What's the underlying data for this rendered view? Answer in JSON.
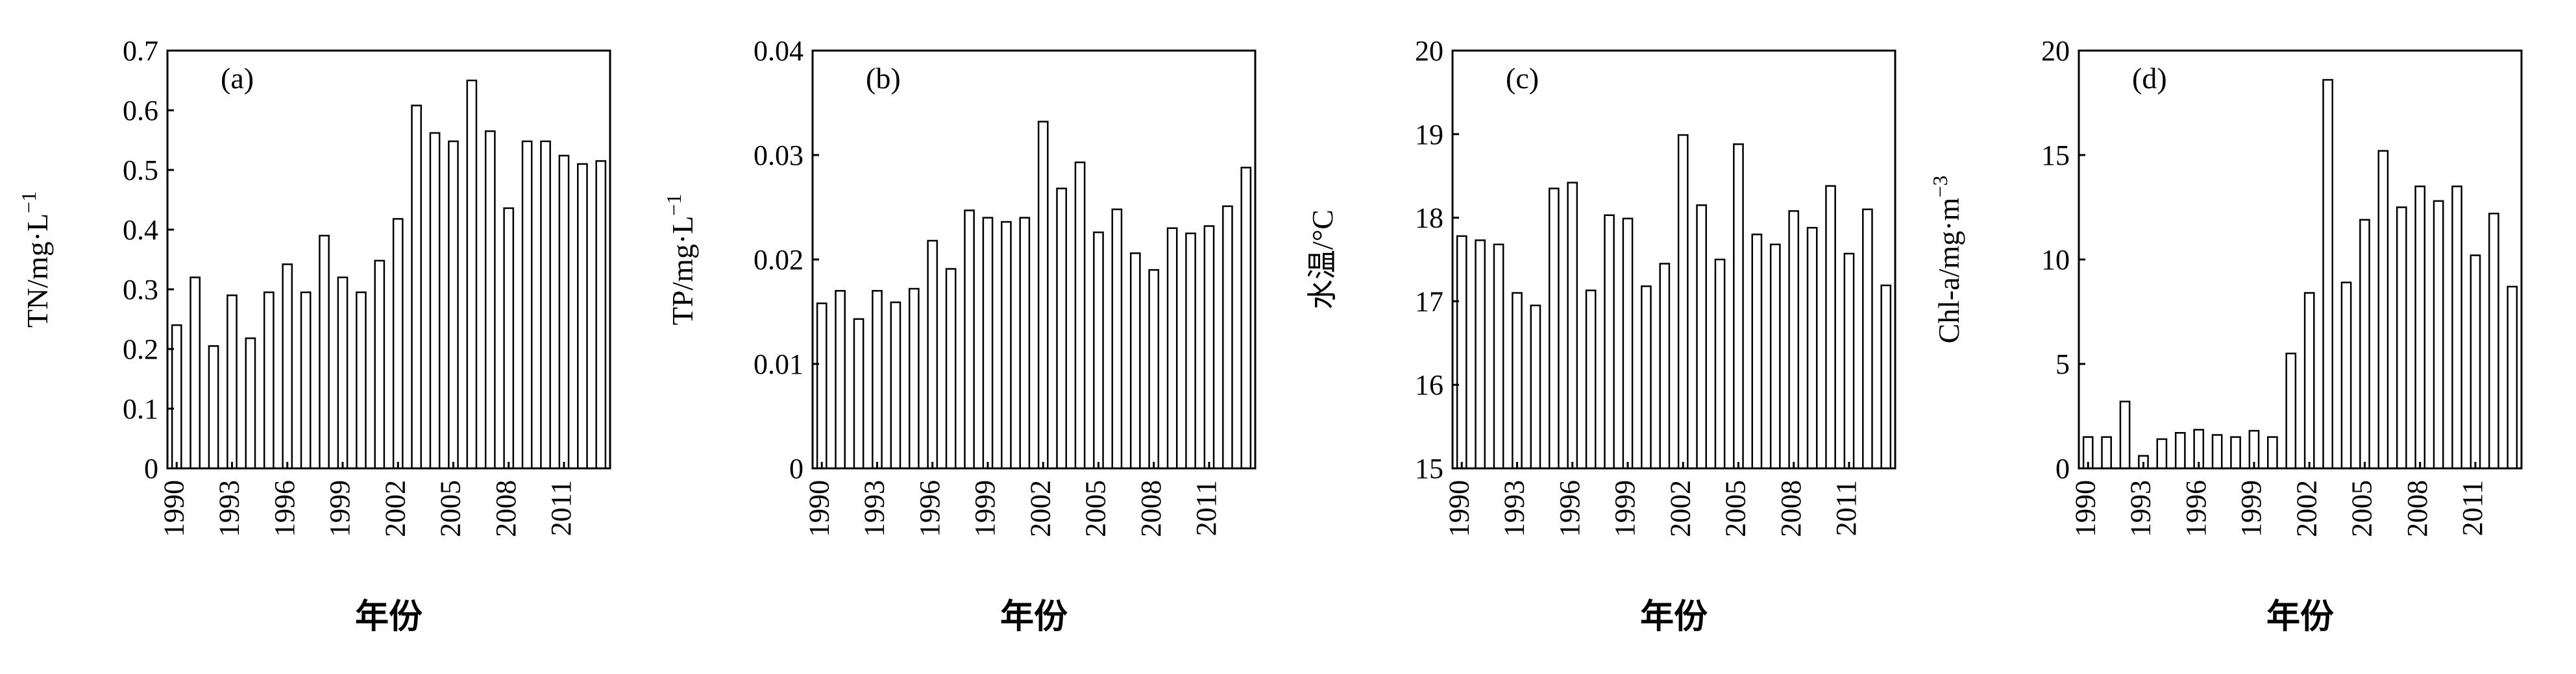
{
  "chart_data": [
    {
      "type": "bar",
      "panel_label": "(a)",
      "ylabel": "TN/mg·L",
      "ylabel_sup": "−1",
      "xlabel": "年份",
      "ylim": [
        0,
        0.7
      ],
      "yticks": [
        "0",
        "0.1",
        "0.2",
        "0.3",
        "0.4",
        "0.5",
        "0.6",
        "0.7"
      ],
      "xticks": [
        "1990",
        "1993",
        "1996",
        "1999",
        "2002",
        "2005",
        "2008",
        "2011"
      ],
      "categories": [
        "1990",
        "1991",
        "1992",
        "1993",
        "1994",
        "1995",
        "1996",
        "1997",
        "1998",
        "1999",
        "2000",
        "2001",
        "2002",
        "2003",
        "2004",
        "2005",
        "2006",
        "2007",
        "2008",
        "2009",
        "2010",
        "2011",
        "2012",
        "2013"
      ],
      "values": [
        0.24,
        0.32,
        0.205,
        0.29,
        0.218,
        0.295,
        0.342,
        0.295,
        0.39,
        0.32,
        0.295,
        0.348,
        0.418,
        0.608,
        0.562,
        0.548,
        0.65,
        0.565,
        0.436,
        0.548,
        0.548,
        0.524,
        0.51,
        0.515
      ]
    },
    {
      "type": "bar",
      "panel_label": "(b)",
      "ylabel": "TP/mg·L",
      "ylabel_sup": "−1",
      "xlabel": "年份",
      "ylim": [
        0,
        0.04
      ],
      "yticks": [
        "0",
        "0.01",
        "0.02",
        "0.03",
        "0.04"
      ],
      "xticks": [
        "1990",
        "1993",
        "1996",
        "1999",
        "2002",
        "2005",
        "2008",
        "2011"
      ],
      "categories": [
        "1990",
        "1991",
        "1992",
        "1993",
        "1994",
        "1995",
        "1996",
        "1997",
        "1998",
        "1999",
        "2000",
        "2001",
        "2002",
        "2003",
        "2004",
        "2005",
        "2006",
        "2007",
        "2008",
        "2009",
        "2010",
        "2011",
        "2012",
        "2013"
      ],
      "values": [
        0.0158,
        0.017,
        0.0143,
        0.017,
        0.0159,
        0.0172,
        0.0218,
        0.0191,
        0.0247,
        0.024,
        0.0236,
        0.024,
        0.0332,
        0.0268,
        0.0293,
        0.0226,
        0.0248,
        0.0206,
        0.019,
        0.023,
        0.0225,
        0.0232,
        0.0251,
        0.0288
      ]
    },
    {
      "type": "bar",
      "panel_label": "(c)",
      "ylabel": "水温/°C",
      "ylabel_sup": "",
      "xlabel": "年份",
      "ylim": [
        15,
        20
      ],
      "yticks": [
        "15",
        "16",
        "17",
        "18",
        "19",
        "20"
      ],
      "xticks": [
        "1990",
        "1993",
        "1996",
        "1999",
        "2002",
        "2005",
        "2008",
        "2011"
      ],
      "categories": [
        "1990",
        "1991",
        "1992",
        "1993",
        "1994",
        "1995",
        "1996",
        "1997",
        "1998",
        "1999",
        "2000",
        "2001",
        "2002",
        "2003",
        "2004",
        "2005",
        "2006",
        "2007",
        "2008",
        "2009",
        "2010",
        "2011",
        "2012",
        "2013"
      ],
      "values": [
        17.78,
        17.73,
        17.68,
        17.1,
        16.95,
        18.35,
        18.42,
        17.13,
        18.03,
        17.99,
        17.18,
        17.45,
        18.99,
        18.15,
        17.5,
        18.88,
        17.8,
        17.68,
        18.08,
        17.88,
        18.38,
        17.57,
        18.1,
        17.19
      ]
    },
    {
      "type": "bar",
      "panel_label": "(d)",
      "ylabel": "Chl-a/mg·m",
      "ylabel_sup": "−3",
      "xlabel": "年份",
      "ylim": [
        0,
        20
      ],
      "yticks": [
        "0",
        "5",
        "10",
        "15",
        "20"
      ],
      "xticks": [
        "1990",
        "1993",
        "1996",
        "1999",
        "2002",
        "2005",
        "2008",
        "2011"
      ],
      "categories": [
        "1990",
        "1991",
        "1992",
        "1993",
        "1994",
        "1995",
        "1996",
        "1997",
        "1998",
        "1999",
        "2000",
        "2001",
        "2002",
        "2003",
        "2004",
        "2005",
        "2006",
        "2007",
        "2008",
        "2009",
        "2010",
        "2011",
        "2012",
        "2013"
      ],
      "values": [
        1.5,
        1.5,
        3.2,
        0.6,
        1.4,
        1.7,
        1.85,
        1.6,
        1.5,
        1.8,
        1.5,
        5.5,
        8.4,
        18.6,
        8.9,
        11.9,
        15.2,
        12.5,
        13.5,
        12.8,
        13.5,
        10.2,
        12.2,
        8.7
      ]
    }
  ]
}
